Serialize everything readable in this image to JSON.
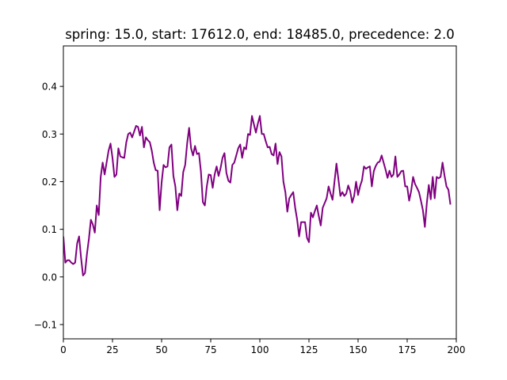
{
  "chart_data": {
    "type": "line",
    "title": "spring: 15.0, start: 17612.0, end: 18485.0, precedence: 2.0",
    "xlabel": "",
    "ylabel": "",
    "xlim": [
      0,
      200
    ],
    "ylim": [
      -0.13,
      0.485
    ],
    "grid": false,
    "x_ticks": [
      0,
      25,
      50,
      75,
      100,
      125,
      150,
      175,
      200
    ],
    "x_tick_labels": [
      "0",
      "25",
      "50",
      "75",
      "100",
      "125",
      "150",
      "175",
      "200"
    ],
    "y_ticks": [
      -0.1,
      0.0,
      0.1,
      0.2,
      0.3,
      0.4
    ],
    "y_tick_labels": [
      "−0.1",
      "0.0",
      "0.1",
      "0.2",
      "0.3",
      "0.4"
    ],
    "series": [
      {
        "color": "#800080",
        "x_start": 0,
        "x_step": 1,
        "values": [
          0.085,
          0.03,
          0.035,
          0.035,
          0.03,
          0.027,
          0.03,
          0.07,
          0.085,
          0.04,
          0.003,
          0.008,
          0.048,
          0.08,
          0.12,
          0.11,
          0.093,
          0.15,
          0.13,
          0.21,
          0.24,
          0.215,
          0.24,
          0.265,
          0.28,
          0.25,
          0.21,
          0.215,
          0.27,
          0.253,
          0.251,
          0.25,
          0.282,
          0.3,
          0.303,
          0.293,
          0.305,
          0.317,
          0.315,
          0.297,
          0.315,
          0.272,
          0.293,
          0.287,
          0.283,
          0.265,
          0.24,
          0.224,
          0.223,
          0.14,
          0.198,
          0.235,
          0.23,
          0.232,
          0.272,
          0.278,
          0.212,
          0.19,
          0.14,
          0.175,
          0.17,
          0.22,
          0.235,
          0.28,
          0.313,
          0.27,
          0.255,
          0.275,
          0.258,
          0.26,
          0.222,
          0.157,
          0.15,
          0.19,
          0.215,
          0.214,
          0.187,
          0.215,
          0.232,
          0.212,
          0.228,
          0.25,
          0.26,
          0.218,
          0.202,
          0.198,
          0.235,
          0.24,
          0.255,
          0.27,
          0.278,
          0.25,
          0.272,
          0.268,
          0.3,
          0.298,
          0.338,
          0.32,
          0.303,
          0.322,
          0.338,
          0.3,
          0.3,
          0.285,
          0.272,
          0.273,
          0.258,
          0.255,
          0.28,
          0.237,
          0.262,
          0.253,
          0.2,
          0.178,
          0.137,
          0.165,
          0.172,
          0.178,
          0.145,
          0.12,
          0.085,
          0.115,
          0.115,
          0.115,
          0.082,
          0.073,
          0.135,
          0.125,
          0.138,
          0.15,
          0.128,
          0.108,
          0.145,
          0.155,
          0.165,
          0.19,
          0.175,
          0.162,
          0.2,
          0.238,
          0.205,
          0.17,
          0.178,
          0.17,
          0.175,
          0.192,
          0.18,
          0.156,
          0.17,
          0.2,
          0.172,
          0.19,
          0.203,
          0.232,
          0.227,
          0.23,
          0.232,
          0.19,
          0.222,
          0.233,
          0.24,
          0.242,
          0.255,
          0.24,
          0.225,
          0.208,
          0.223,
          0.21,
          0.215,
          0.253,
          0.21,
          0.215,
          0.222,
          0.223,
          0.19,
          0.19,
          0.16,
          0.18,
          0.21,
          0.195,
          0.187,
          0.178,
          0.16,
          0.14,
          0.105,
          0.155,
          0.193,
          0.163,
          0.21,
          0.165,
          0.21,
          0.207,
          0.21,
          0.24,
          0.213,
          0.19,
          0.183,
          0.152
        ]
      }
    ]
  }
}
